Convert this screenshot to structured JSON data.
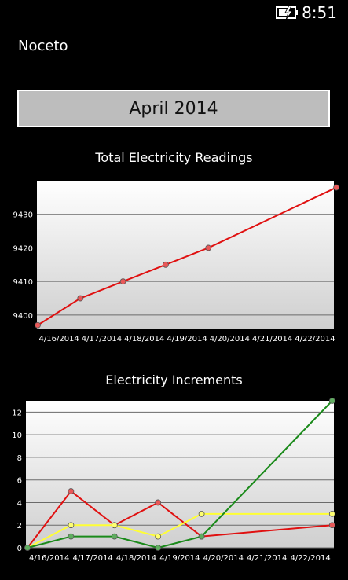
{
  "status_bar": {
    "time": "8:51",
    "battery_icon": "battery-charging-icon"
  },
  "app": {
    "title": "Noceto"
  },
  "month_selector": {
    "label": "April 2014"
  },
  "colors": {
    "red": "#e01010",
    "yellow": "#ffff33",
    "green": "#1a8a1a",
    "button_bg": "#bdbdbd"
  },
  "chart_data": [
    {
      "type": "line",
      "title": "Total Electricity Readings",
      "categories": [
        "4/16/2014",
        "4/17/2014",
        "4/18/2014",
        "4/19/2014",
        "4/20/2014",
        "4/21/2014",
        "4/22/2014"
      ],
      "yticks": [
        "9400",
        "9410",
        "9420",
        "9430"
      ],
      "ylim": [
        9396,
        9440
      ],
      "grid": true,
      "series": [
        {
          "color": "#e01010",
          "points": [
            [
              0,
              9397
            ],
            [
              1,
              9405
            ],
            [
              2,
              9410
            ],
            [
              3,
              9415
            ],
            [
              4,
              9420
            ],
            [
              7,
              9438
            ]
          ]
        }
      ]
    },
    {
      "type": "line",
      "title": "Electricity Increments",
      "categories": [
        "4/16/2014",
        "4/17/2014",
        "4/18/2014",
        "4/19/2014",
        "4/20/2014",
        "4/21/2014",
        "4/22/2014"
      ],
      "yticks": [
        "0",
        "2",
        "4",
        "6",
        "8",
        "10",
        "12"
      ],
      "ylim": [
        0,
        13
      ],
      "grid": true,
      "series": [
        {
          "color": "#e01010",
          "points": [
            [
              0,
              0
            ],
            [
              1,
              5
            ],
            [
              2,
              2
            ],
            [
              3,
              4
            ],
            [
              4,
              1
            ],
            [
              7,
              2
            ]
          ]
        },
        {
          "color": "#ffff33",
          "points": [
            [
              0,
              0
            ],
            [
              1,
              2
            ],
            [
              2,
              2
            ],
            [
              3,
              1
            ],
            [
              4,
              3
            ],
            [
              7,
              3
            ]
          ]
        },
        {
          "color": "#1a8a1a",
          "points": [
            [
              0,
              0
            ],
            [
              1,
              1
            ],
            [
              2,
              1
            ],
            [
              3,
              0
            ],
            [
              4,
              1
            ],
            [
              7,
              13
            ]
          ]
        }
      ]
    }
  ]
}
